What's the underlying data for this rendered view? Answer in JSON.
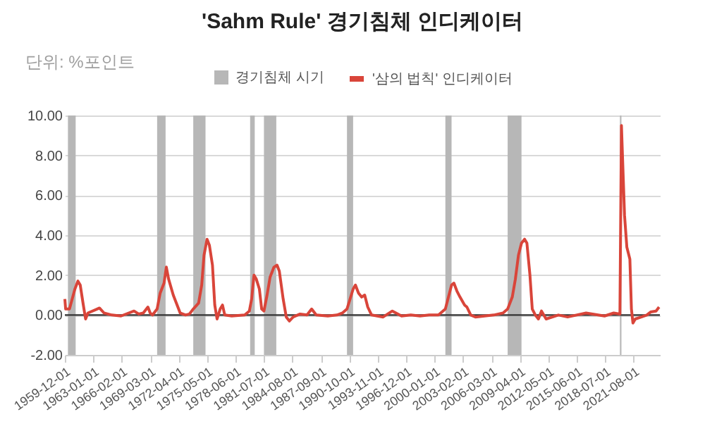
{
  "chart_data": {
    "type": "line",
    "title": "'Sahm Rule' 경기침체 인디케이터",
    "subtitle": "단위: %포인트",
    "x": [
      "1959-12",
      "1960-01",
      "1960-06",
      "1961-01",
      "1961-05",
      "1961-08",
      "1961-12",
      "1962-03",
      "1962-06",
      "1963-06",
      "1963-09",
      "1964-03",
      "1965-01",
      "1966-01",
      "1967-06",
      "1967-12",
      "1968-06",
      "1968-12",
      "1969-03",
      "1969-06",
      "1969-12",
      "1970-04",
      "1970-09",
      "1970-12",
      "1971-03",
      "1971-09",
      "1971-12",
      "1972-06",
      "1973-01",
      "1973-06",
      "1973-11",
      "1974-06",
      "1974-10",
      "1975-01",
      "1975-05",
      "1975-08",
      "1975-12",
      "1976-03",
      "1976-06",
      "1976-10",
      "1977-01",
      "1977-04",
      "1978-01",
      "1979-06",
      "1979-12",
      "1980-03",
      "1980-06",
      "1980-09",
      "1981-01",
      "1981-04",
      "1981-07",
      "1981-11",
      "1982-03",
      "1982-08",
      "1982-12",
      "1983-03",
      "1983-08",
      "1983-12",
      "1984-04",
      "1984-09",
      "1985-06",
      "1986-03",
      "1986-09",
      "1987-03",
      "1988-06",
      "1989-06",
      "1990-01",
      "1990-07",
      "1990-11",
      "1991-03",
      "1991-06",
      "1991-10",
      "1992-02",
      "1992-06",
      "1992-10",
      "1993-03",
      "1994-06",
      "1995-06",
      "1996-06",
      "1997-06",
      "1998-06",
      "1999-06",
      "2000-06",
      "2001-03",
      "2001-07",
      "2001-11",
      "2002-02",
      "2002-06",
      "2002-10",
      "2003-04",
      "2003-07",
      "2003-12",
      "2004-06",
      "2005-06",
      "2006-06",
      "2007-06",
      "2007-12",
      "2008-06",
      "2008-10",
      "2009-02",
      "2009-06",
      "2009-10",
      "2010-01",
      "2010-05",
      "2010-08",
      "2010-12",
      "2011-04",
      "2011-08",
      "2012-02",
      "2013-06",
      "2014-06",
      "2016-06",
      "2018-06",
      "2019-06",
      "2020-02",
      "2020-04",
      "2020-08",
      "2020-11",
      "2021-03",
      "2021-05",
      "2021-07",
      "2021-10",
      "2022-06",
      "2023-01",
      "2023-06",
      "2024-01",
      "2024-05"
    ],
    "series": [
      {
        "name": "'삼의 법칙' 인디케이터",
        "color": "#d9453a",
        "values": [
          0.8,
          0.3,
          0.3,
          1.3,
          1.7,
          1.5,
          0.5,
          -0.2,
          0.1,
          0.3,
          0.35,
          0.1,
          0,
          -0.05,
          0.2,
          0.05,
          0.1,
          0.4,
          0.1,
          0,
          0.3,
          1.1,
          1.6,
          2.4,
          1.8,
          1,
          0.7,
          0.1,
          0,
          0.05,
          0.3,
          0.6,
          1.5,
          3,
          3.8,
          3.5,
          2.5,
          0.5,
          -0.2,
          0.3,
          0.5,
          0,
          -0.05,
          0,
          0.2,
          0.8,
          2,
          1.8,
          1.3,
          0.3,
          0.2,
          1,
          1.9,
          2.4,
          2.5,
          2.2,
          0.8,
          -0.1,
          -0.3,
          -0.1,
          0.05,
          0,
          0.3,
          0,
          -0.05,
          0,
          0.1,
          0.3,
          0.8,
          1.3,
          1.5,
          1.1,
          0.9,
          1,
          0.4,
          0,
          -0.1,
          0.2,
          -0.05,
          0,
          -0.05,
          0,
          0,
          0.3,
          0.9,
          1.5,
          1.6,
          1.2,
          0.9,
          0.5,
          0.4,
          0,
          -0.1,
          -0.05,
          0,
          0.1,
          0.3,
          0.9,
          1.8,
          3,
          3.6,
          3.8,
          3.6,
          2,
          0.3,
          0,
          -0.2,
          0.2,
          -0.2,
          0,
          -0.1,
          0.1,
          -0.05,
          0.1,
          0.05,
          9.5,
          5,
          3.4,
          2.8,
          0.3,
          -0.4,
          -0.2,
          -0.1,
          0,
          0.15,
          0.2,
          0.4
        ]
      }
    ],
    "bands": [
      {
        "axis": "x",
        "from": "1960-04",
        "to": "1961-02",
        "label": "경기침체 시기",
        "color": "#b7b7b7"
      },
      {
        "axis": "x",
        "from": "1969-12",
        "to": "1970-11",
        "color": "#b7b7b7"
      },
      {
        "axis": "x",
        "from": "1973-11",
        "to": "1975-03",
        "color": "#b7b7b7"
      },
      {
        "axis": "x",
        "from": "1980-01",
        "to": "1980-07",
        "color": "#b7b7b7"
      },
      {
        "axis": "x",
        "from": "1981-07",
        "to": "1982-11",
        "color": "#b7b7b7"
      },
      {
        "axis": "x",
        "from": "1990-07",
        "to": "1991-03",
        "color": "#b7b7b7"
      },
      {
        "axis": "x",
        "from": "2001-03",
        "to": "2001-11",
        "color": "#b7b7b7"
      },
      {
        "axis": "x",
        "from": "2007-12",
        "to": "2009-06",
        "color": "#b7b7b7"
      },
      {
        "axis": "x",
        "from": "2020-02",
        "to": "2020-04",
        "color": "#b7b7b7"
      }
    ],
    "ref_lines": [
      {
        "axis": "y",
        "value": 0,
        "color": "#333333"
      }
    ],
    "xlim": [
      "1959-12",
      "2024-06"
    ],
    "xticks": [
      {
        "value": "1959-12",
        "label": "1959-12-01"
      },
      {
        "value": "1963-01",
        "label": "1963-01-01"
      },
      {
        "value": "1966-02",
        "label": "1966-02-01"
      },
      {
        "value": "1969-03",
        "label": "1969-03-01"
      },
      {
        "value": "1972-04",
        "label": "1972-04-01"
      },
      {
        "value": "1975-05",
        "label": "1975-05-01"
      },
      {
        "value": "1978-06",
        "label": "1978-06-01"
      },
      {
        "value": "1981-07",
        "label": "1981-07-01"
      },
      {
        "value": "1984-08",
        "label": "1984-08-01"
      },
      {
        "value": "1987-09",
        "label": "1987-09-01"
      },
      {
        "value": "1990-10",
        "label": "1990-10-01"
      },
      {
        "value": "1993-11",
        "label": "1993-11-01"
      },
      {
        "value": "1996-12",
        "label": "1996-12-01"
      },
      {
        "value": "2000-01",
        "label": "2000-01-01"
      },
      {
        "value": "2003-02",
        "label": "2003-02-01"
      },
      {
        "value": "2006-03",
        "label": "2006-03-01"
      },
      {
        "value": "2009-04",
        "label": "2009-04-01"
      },
      {
        "value": "2012-05",
        "label": "2012-05-01"
      },
      {
        "value": "2015-06",
        "label": "2015-06-01"
      },
      {
        "value": "2018-07",
        "label": "2018-07-01"
      },
      {
        "value": "2021-08",
        "label": "2021-08-01"
      }
    ],
    "ylim": [
      -2,
      10
    ],
    "yticks": [
      {
        "value": -2,
        "label": "-2.00"
      },
      {
        "value": 0,
        "label": "0.00"
      },
      {
        "value": 2,
        "label": "2.00"
      },
      {
        "value": 4,
        "label": "4.00"
      },
      {
        "value": 6,
        "label": "6.00"
      },
      {
        "value": 8,
        "label": "8.00"
      },
      {
        "value": 10,
        "label": "10.00"
      }
    ],
    "grid": "y",
    "legend": "top",
    "marker": "none",
    "line_style": "solid"
  }
}
